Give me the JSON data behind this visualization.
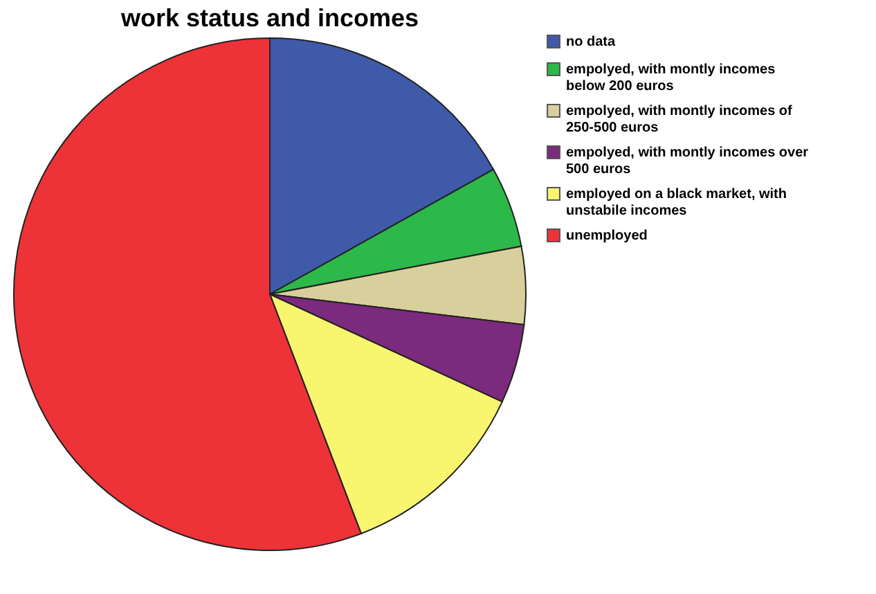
{
  "chart_data": {
    "type": "pie",
    "title": "work status and incomes",
    "categories": [
      "no data",
      "empolyed, with montly incomes below 200 euros",
      "empolyed, with montly incomes of 250-500 euros",
      "empolyed, with montly incomes over 500 euros",
      "employed on a black market, with unstabile incomes",
      "unemployed"
    ],
    "values": [
      16.9,
      5.1,
      4.9,
      5.0,
      12.3,
      55.8
    ],
    "colors": [
      "#3f5aa8",
      "#2db84a",
      "#d8d09c",
      "#7b2a7e",
      "#f9f56e",
      "#ee3338"
    ],
    "legend": "top right"
  }
}
